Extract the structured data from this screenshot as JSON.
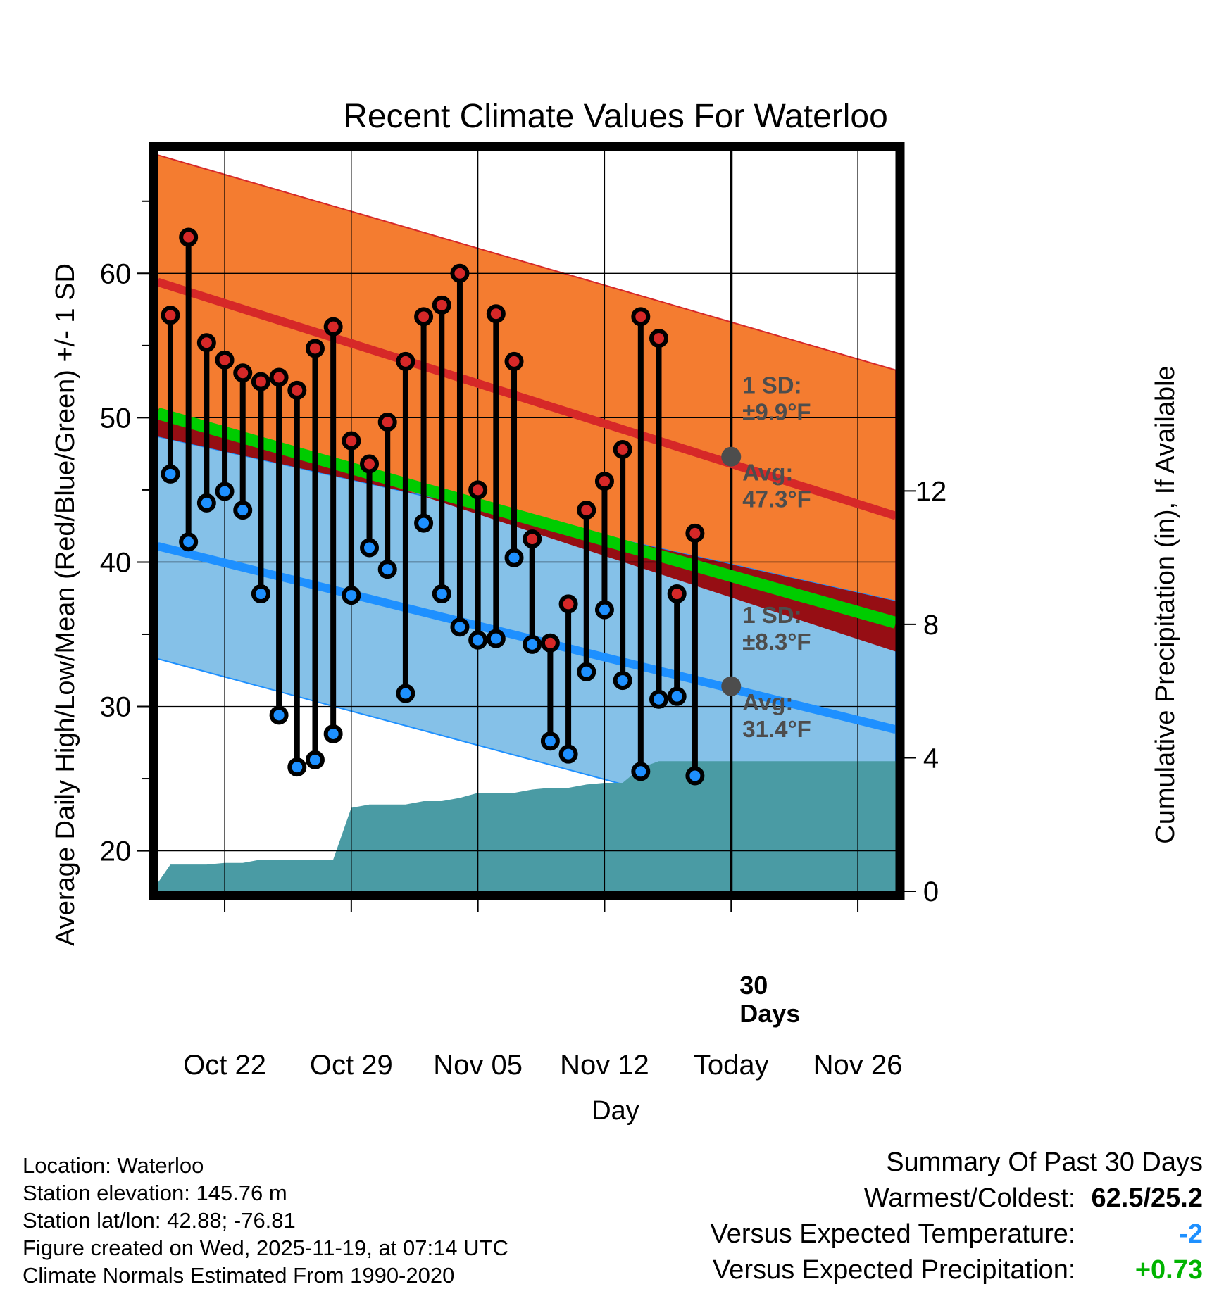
{
  "chart_data": {
    "type": "line",
    "title": "Recent Climate Values For Waterloo",
    "xlabel": "Day",
    "ylabel_left": "Average Daily High/Low/Mean (Red/Blue/Green) +/- 1 SD",
    "ylabel_right": "Cumulative Precipitation (in), If Available",
    "x_ticks": [
      {
        "day": 3,
        "label": "Oct 22"
      },
      {
        "day": 10,
        "label": "Oct 29"
      },
      {
        "day": 17,
        "label": "Nov 05"
      },
      {
        "day": 24,
        "label": "Nov 12"
      },
      {
        "day": 31,
        "label": "Today"
      },
      {
        "day": 38,
        "label": "Nov 26"
      }
    ],
    "xlim": [
      -0.7,
      40.1
    ],
    "ylim_temp": [
      17.2,
      68.5
    ],
    "ylim_precip": [
      0,
      22.2
    ],
    "y_ticks_temp": [
      20,
      30,
      40,
      50,
      60
    ],
    "y_minor_ticks_temp": [
      25,
      35,
      45,
      55,
      65
    ],
    "y_ticks_precip": [
      0,
      4,
      8,
      12
    ],
    "normals": {
      "high_mean": [
        59.4,
        43.2
      ],
      "high_upper": [
        68.2,
        53.3
      ],
      "high_lower": [
        50.6,
        33.8
      ],
      "low_mean": [
        41.1,
        28.4
      ],
      "low_upper": [
        48.7,
        37.3
      ],
      "low_lower": [
        33.3,
        19.5
      ],
      "avg_mean": [
        50.3,
        35.8
      ],
      "today_high_avg": 47.3,
      "today_low_avg": 31.4
    },
    "daily": [
      {
        "day": 0,
        "high": 57.1,
        "low": 46.1
      },
      {
        "day": 1,
        "high": 62.5,
        "low": 41.4
      },
      {
        "day": 2,
        "high": 55.2,
        "low": 44.1
      },
      {
        "day": 3,
        "high": 54.0,
        "low": 44.9
      },
      {
        "day": 4,
        "high": 53.1,
        "low": 43.6
      },
      {
        "day": 5,
        "high": 52.5,
        "low": 37.8
      },
      {
        "day": 6,
        "high": 52.8,
        "low": 29.4
      },
      {
        "day": 7,
        "high": 51.9,
        "low": 25.8
      },
      {
        "day": 8,
        "high": 54.8,
        "low": 26.3
      },
      {
        "day": 9,
        "high": 56.3,
        "low": 28.1
      },
      {
        "day": 10,
        "high": 48.4,
        "low": 37.7
      },
      {
        "day": 11,
        "high": 46.8,
        "low": 41.0
      },
      {
        "day": 12,
        "high": 49.7,
        "low": 39.5
      },
      {
        "day": 13,
        "high": 53.9,
        "low": 30.9
      },
      {
        "day": 14,
        "high": 57.0,
        "low": 42.7
      },
      {
        "day": 15,
        "high": 57.8,
        "low": 37.8
      },
      {
        "day": 16,
        "high": 60.0,
        "low": 35.5
      },
      {
        "day": 17,
        "high": 45.0,
        "low": 34.6
      },
      {
        "day": 18,
        "high": 57.2,
        "low": 34.7
      },
      {
        "day": 19,
        "high": 53.9,
        "low": 40.3
      },
      {
        "day": 20,
        "high": 41.6,
        "low": 34.3
      },
      {
        "day": 21,
        "high": 34.4,
        "low": 27.6
      },
      {
        "day": 22,
        "high": 37.1,
        "low": 26.7
      },
      {
        "day": 23,
        "high": 43.6,
        "low": 32.4
      },
      {
        "day": 24,
        "high": 45.6,
        "low": 36.7
      },
      {
        "day": 25,
        "high": 47.8,
        "low": 31.8
      },
      {
        "day": 26,
        "high": 57.0,
        "low": 25.5
      },
      {
        "day": 27,
        "high": 55.5,
        "low": 30.5
      },
      {
        "day": 28,
        "high": 37.8,
        "low": 30.7
      },
      {
        "day": 29,
        "high": 42.0,
        "low": 25.2
      }
    ],
    "precip_cumulative": [
      {
        "day": -0.7,
        "value": 0.25
      },
      {
        "day": 0,
        "value": 0.8
      },
      {
        "day": 1,
        "value": 0.8
      },
      {
        "day": 2,
        "value": 0.8
      },
      {
        "day": 3,
        "value": 0.85
      },
      {
        "day": 4,
        "value": 0.85
      },
      {
        "day": 5,
        "value": 0.95
      },
      {
        "day": 6,
        "value": 0.95
      },
      {
        "day": 7,
        "value": 0.95
      },
      {
        "day": 8,
        "value": 0.95
      },
      {
        "day": 9,
        "value": 0.95
      },
      {
        "day": 10,
        "value": 2.5
      },
      {
        "day": 11,
        "value": 2.6
      },
      {
        "day": 12,
        "value": 2.6
      },
      {
        "day": 13,
        "value": 2.6
      },
      {
        "day": 14,
        "value": 2.7
      },
      {
        "day": 15,
        "value": 2.7
      },
      {
        "day": 16,
        "value": 2.8
      },
      {
        "day": 17,
        "value": 2.95
      },
      {
        "day": 18,
        "value": 2.95
      },
      {
        "day": 19,
        "value": 2.95
      },
      {
        "day": 20,
        "value": 3.05
      },
      {
        "day": 21,
        "value": 3.1
      },
      {
        "day": 22,
        "value": 3.1
      },
      {
        "day": 23,
        "value": 3.2
      },
      {
        "day": 24,
        "value": 3.25
      },
      {
        "day": 25,
        "value": 3.25
      },
      {
        "day": 26,
        "value": 3.7
      },
      {
        "day": 27,
        "value": 3.9
      },
      {
        "day": 28,
        "value": 3.9
      },
      {
        "day": 29,
        "value": 3.9
      },
      {
        "day": 40.1,
        "value": 3.9
      }
    ],
    "annotations": {
      "high_sd_line1": "1 SD:",
      "high_sd_line2": "±9.9°F",
      "high_avg_line1": "Avg:",
      "high_avg_line2": "47.3°F",
      "low_sd_line1": "1 SD:",
      "low_sd_line2": "±8.3°F",
      "low_avg_line1": "Avg:",
      "low_avg_line2": "31.4°F",
      "days_line1": "30",
      "days_line2": "Days"
    },
    "colors": {
      "high_band": "#f47c30",
      "high_line": "#d62828",
      "low_band": "#85c1e8",
      "low_line": "#1e90ff",
      "mean_line": "#00cc00",
      "overlap": "#960e14",
      "precip": "#4a9ba4",
      "marker_outline": "#000000",
      "annotation_dot": "#4d4d4d"
    }
  },
  "footer": {
    "location": "Location: Waterloo",
    "elevation": "Station elevation: 145.76 m",
    "latlon": "Station lat/lon: 42.88; -76.81",
    "created": "Figure created on Wed, 2025-11-19, at 07:14 UTC",
    "normals": "Climate Normals Estimated From 1990-2020"
  },
  "summary": {
    "title": "Summary Of Past 30 Days",
    "warmest_label": "Warmest/Coldest:",
    "warmest_value": "62.5/25.2",
    "temp_label": "Versus Expected Temperature:",
    "temp_value": "-2",
    "temp_color": "#1e90ff",
    "precip_label": "Versus Expected Precipitation:",
    "precip_value": "+0.73",
    "precip_color": "#00b300"
  }
}
